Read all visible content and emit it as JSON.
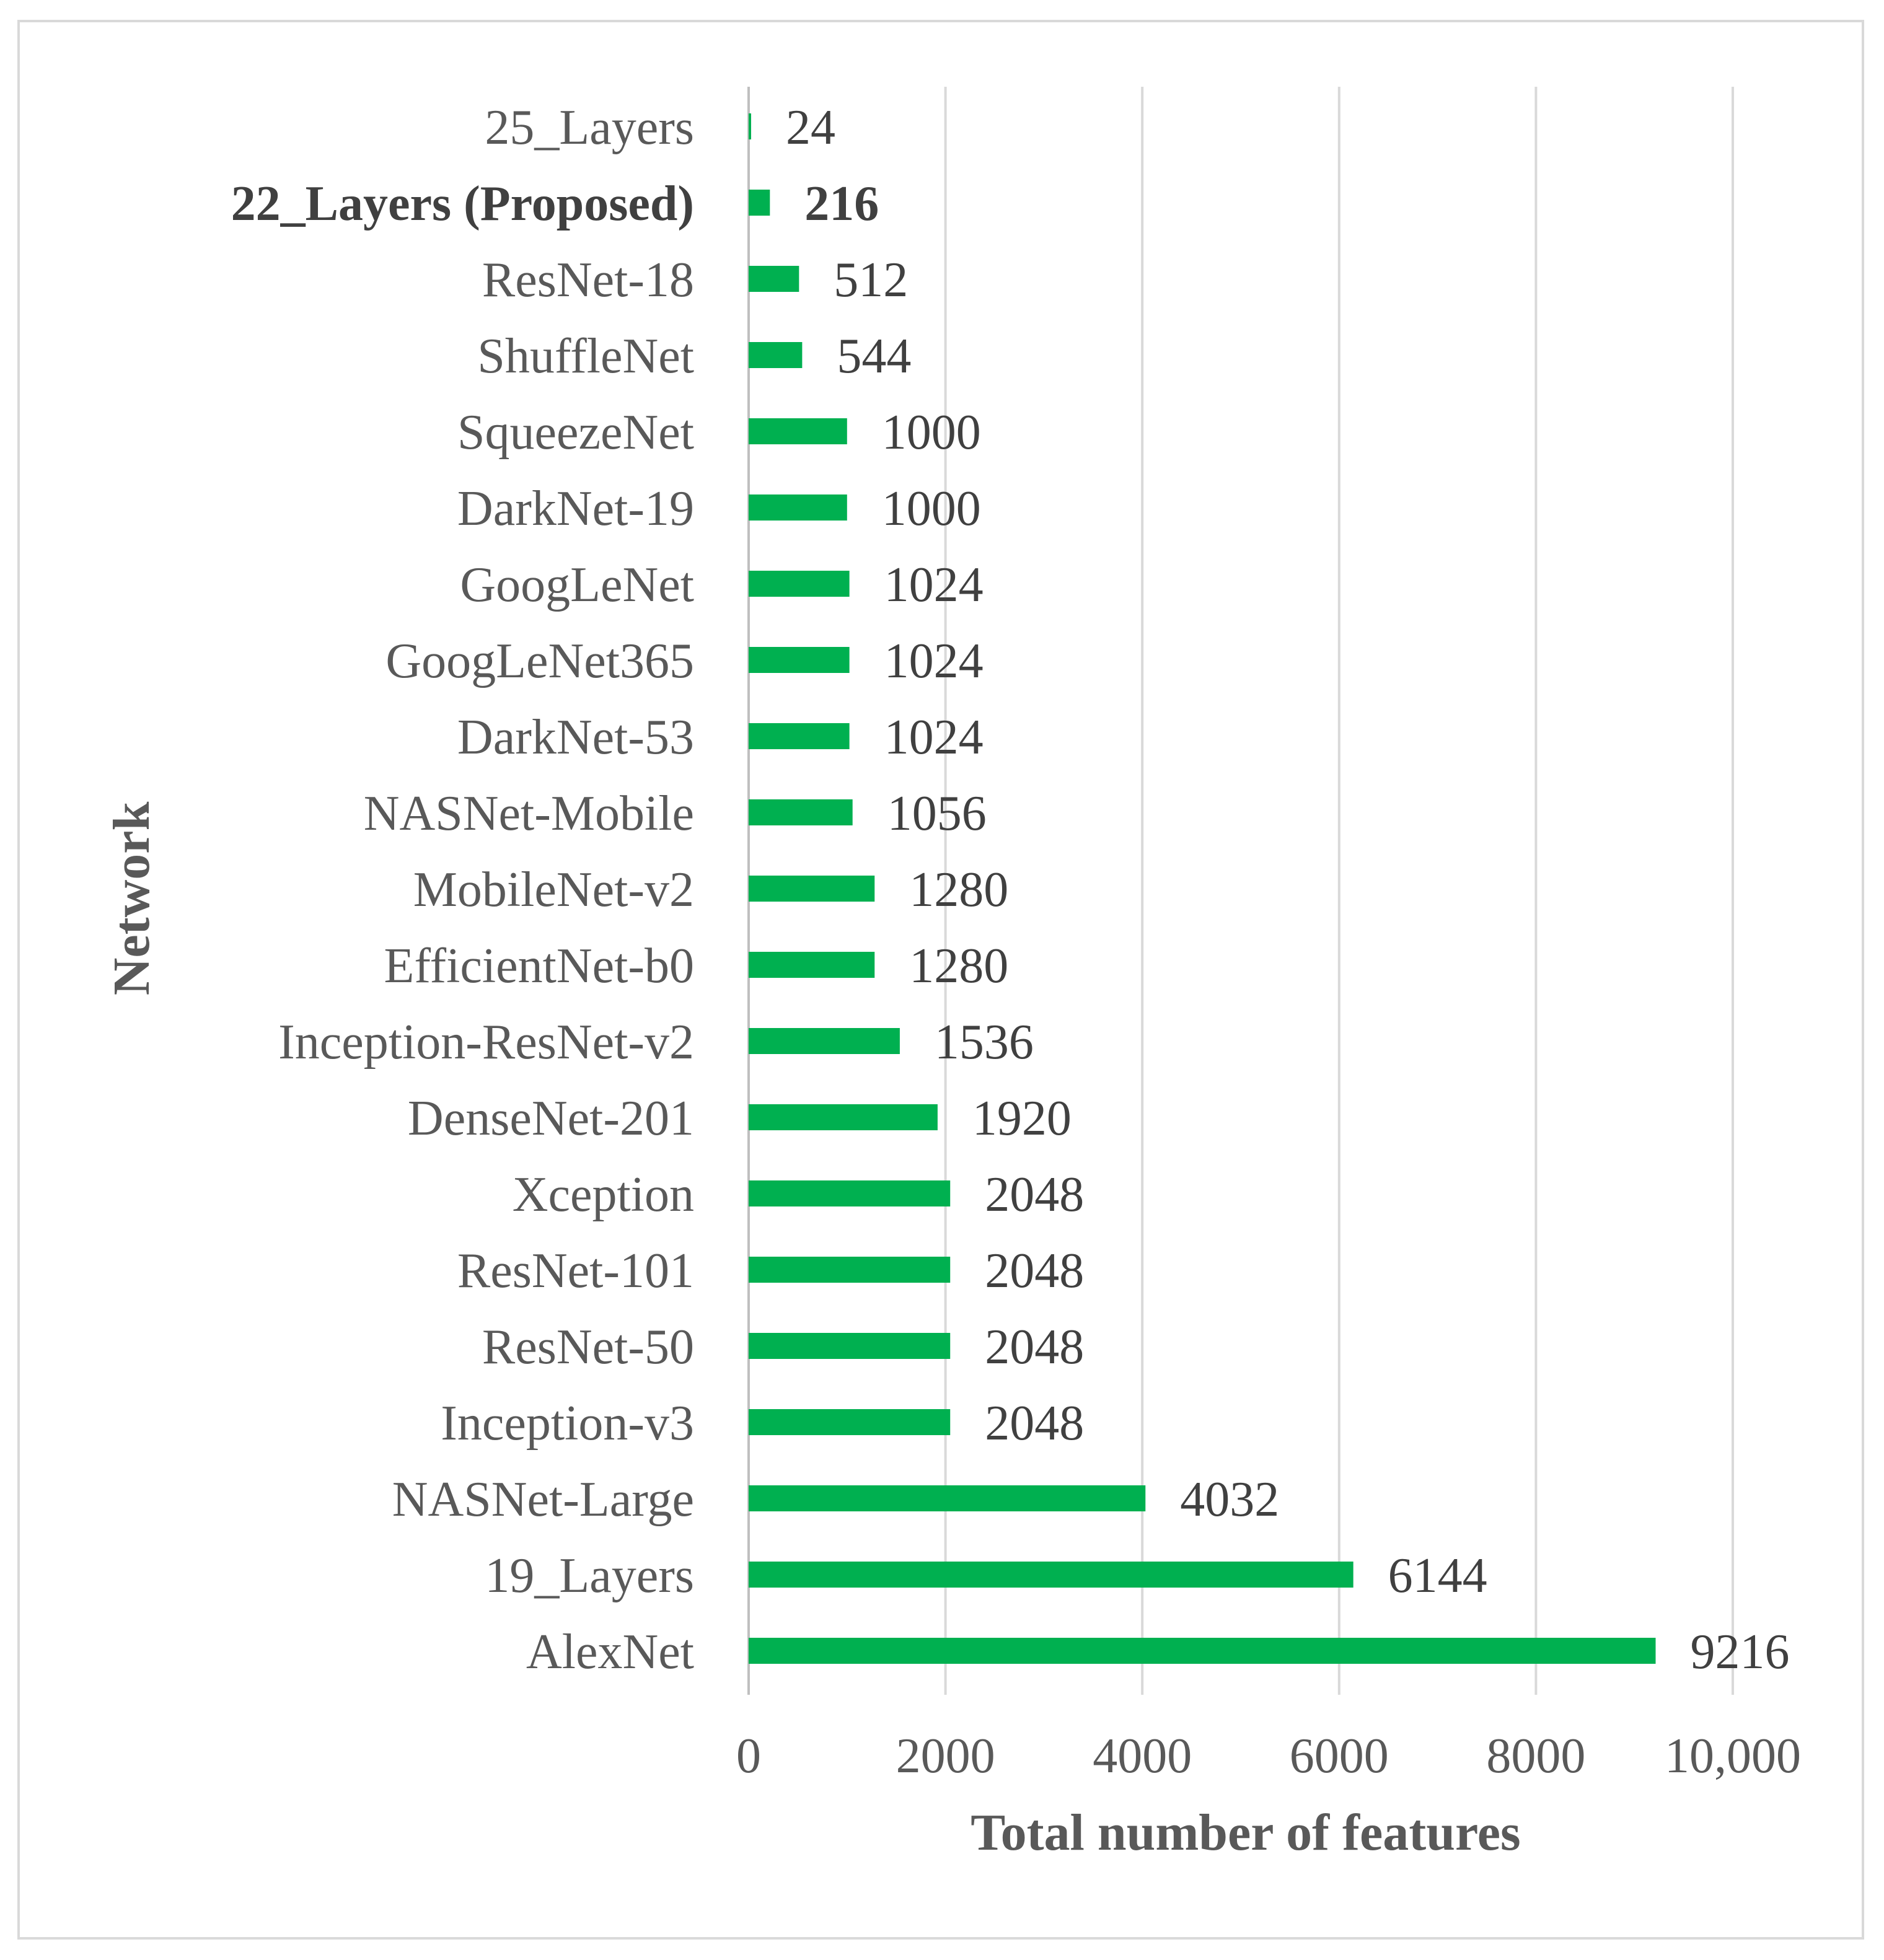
{
  "chart_data": {
    "type": "bar",
    "orientation": "horizontal",
    "title": "",
    "xlabel": "Total number of features",
    "ylabel": "Network",
    "xlim": [
      0,
      10000
    ],
    "xticks": [
      0,
      2000,
      4000,
      6000,
      8000,
      10000
    ],
    "xtick_labels": [
      "0",
      "2000",
      "4000",
      "6000",
      "8000",
      "10,000"
    ],
    "grid": "vertical",
    "bar_color": "#00b050",
    "categories": [
      "25_Layers",
      "22_Layers (Proposed)",
      "ResNet-18",
      "ShuffleNet",
      "SqueezeNet",
      "DarkNet-19",
      "GoogLeNet",
      "GoogLeNet365",
      "DarkNet-53",
      "NASNet-Mobile",
      "MobileNet-v2",
      "EfficientNet-b0",
      "Inception-ResNet-v2",
      "DenseNet-201",
      "Xception",
      "ResNet-101",
      "ResNet-50",
      "Inception-v3",
      "NASNet-Large",
      "19_Layers",
      "AlexNet"
    ],
    "values": [
      24,
      216,
      512,
      544,
      1000,
      1000,
      1024,
      1024,
      1024,
      1056,
      1280,
      1280,
      1536,
      1920,
      2048,
      2048,
      2048,
      2048,
      4032,
      6144,
      9216
    ],
    "highlighted_category": "22_Layers (Proposed)"
  }
}
